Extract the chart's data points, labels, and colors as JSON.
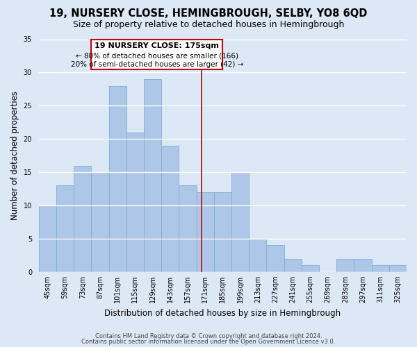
{
  "title": "19, NURSERY CLOSE, HEMINGBROUGH, SELBY, YO8 6QD",
  "subtitle": "Size of property relative to detached houses in Hemingbrough",
  "xlabel": "Distribution of detached houses by size in Hemingbrough",
  "ylabel": "Number of detached properties",
  "bin_labels": [
    "45sqm",
    "59sqm",
    "73sqm",
    "87sqm",
    "101sqm",
    "115sqm",
    "129sqm",
    "143sqm",
    "157sqm",
    "171sqm",
    "185sqm",
    "199sqm",
    "213sqm",
    "227sqm",
    "241sqm",
    "255sqm",
    "269sqm",
    "283sqm",
    "297sqm",
    "311sqm",
    "325sqm"
  ],
  "bar_values": [
    10,
    13,
    16,
    15,
    28,
    21,
    29,
    19,
    13,
    12,
    12,
    15,
    5,
    4,
    2,
    1,
    0,
    2,
    2,
    1,
    1
  ],
  "bar_color": "#aec6e8",
  "bar_edge_color": "#7bafd4",
  "property_line_label": "19 NURSERY CLOSE: 175sqm",
  "annotation_line1": "← 80% of detached houses are smaller (166)",
  "annotation_line2": "20% of semi-detached houses are larger (42) →",
  "annotation_box_color": "#ffffff",
  "annotation_box_edge_color": "#cc0000",
  "vline_color": "#cc0000",
  "ylim": [
    0,
    35
  ],
  "yticks": [
    0,
    5,
    10,
    15,
    20,
    25,
    30,
    35
  ],
  "footer1": "Contains HM Land Registry data © Crown copyright and database right 2024.",
  "footer2": "Contains public sector information licensed under the Open Government Licence v3.0.",
  "bg_color": "#dce8f5",
  "grid_color": "#ffffff",
  "title_fontsize": 10.5,
  "subtitle_fontsize": 9,
  "axis_label_fontsize": 8.5,
  "tick_fontsize": 7,
  "footer_fontsize": 6,
  "annot_title_fontsize": 8,
  "annot_text_fontsize": 7.5
}
